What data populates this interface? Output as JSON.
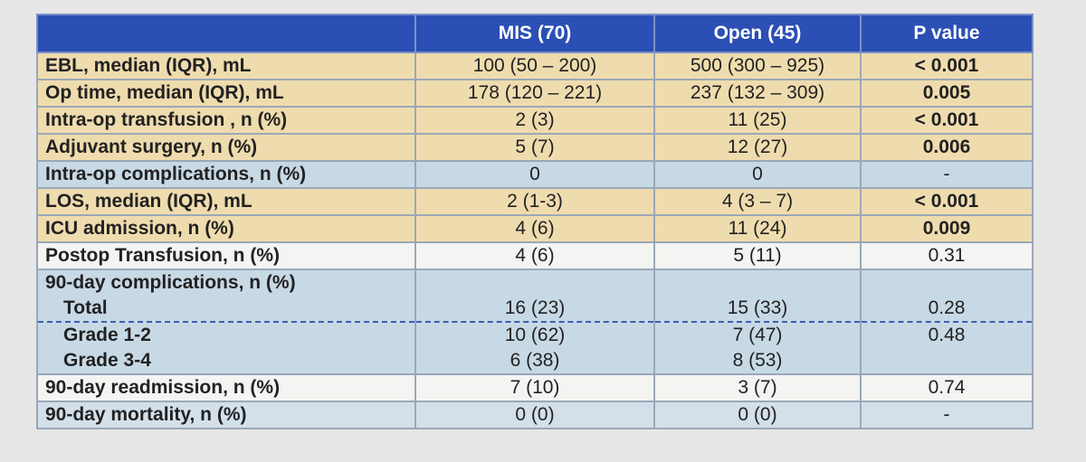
{
  "table": {
    "header": [
      "MIS (70)",
      "Open (45)",
      "P value"
    ],
    "rows": [
      {
        "label": "EBL, median (IQR), mL",
        "mis": "100 (50 – 200)",
        "open": "500 (300 – 925)",
        "p": "< 0.001",
        "bold": true,
        "shade": "#efdcae"
      },
      {
        "label": "Op time, median (IQR), mL",
        "mis": "178 (120 – 221)",
        "open": "237 (132 – 309)",
        "p": "0.005",
        "bold": true,
        "shade": "#efdcae"
      },
      {
        "label": "Intra-op transfusion , n (%)",
        "mis": "2 (3)",
        "open": "11 (25)",
        "p": "< 0.001",
        "bold": true,
        "shade": "#efdcae"
      },
      {
        "label": "Adjuvant surgery, n (%)",
        "mis": "5 (7)",
        "open": "12 (27)",
        "p": "0.006",
        "bold": true,
        "shade": "#efdcae"
      },
      {
        "label": "Intra-op complications, n (%)",
        "mis": "0",
        "open": "0",
        "p": "-",
        "shade": "#c8d9e6"
      },
      {
        "label": "LOS, median (IQR), mL",
        "mis": "2 (1-3)",
        "open": "4 (3 – 7)",
        "p": "< 0.001",
        "bold": true,
        "shade": "#efdcae"
      },
      {
        "label": "ICU admission, n (%)",
        "mis": "4 (6)",
        "open": "11 (24)",
        "p": "0.009",
        "bold": true,
        "shade": "#efdcae"
      },
      {
        "label": "Postop Transfusion, n (%)",
        "mis": "4 (6)",
        "open": "5 (11)",
        "p": "0.31",
        "shade": "#f4f4f2"
      },
      {
        "label": "90-day complications, n (%)",
        "shade": "#c8d9e6",
        "group": "start"
      },
      {
        "label": "Total",
        "mis": "16 (23)",
        "open": "15 (33)",
        "p": "0.28",
        "shade": "#c8d9e6",
        "sub": true,
        "dashed": true
      },
      {
        "label": "Grade 1-2",
        "mis": "10 (62)",
        "open": "7 (47)",
        "p": "0.48",
        "shade": "#c8d9e6",
        "sub": true
      },
      {
        "label": "Grade 3-4",
        "mis": "6 (38)",
        "open": "8 (53)",
        "shade": "#c8d9e6",
        "sub": true,
        "group": "end"
      },
      {
        "label": "90-day readmission, n (%)",
        "mis": "7 (10)",
        "open": "3 (7)",
        "p": "0.74",
        "shade": "#f4f4f2"
      },
      {
        "label": "90-day mortality, n (%)",
        "mis": "0 (0)",
        "open": "0 (0)",
        "p": "-",
        "shade": "#d3e0ea"
      }
    ]
  }
}
